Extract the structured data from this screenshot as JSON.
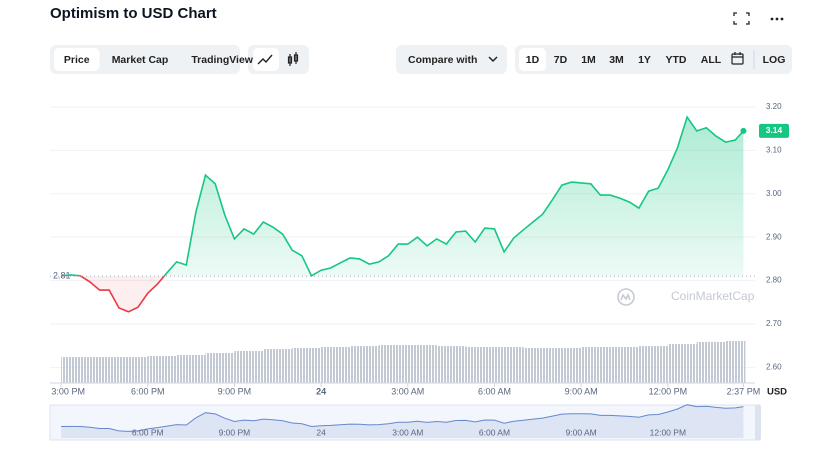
{
  "header": {
    "title": "Optimism to USD Chart"
  },
  "toolbar": {
    "tabs": [
      "Price",
      "Market Cap",
      "TradingView"
    ],
    "active_tab": "Price",
    "compare": "Compare with",
    "ranges": [
      "1D",
      "7D",
      "1M",
      "3M",
      "1Y",
      "YTD",
      "ALL"
    ],
    "active_range": "1D",
    "log": "LOG"
  },
  "chart_data": {
    "type": "line",
    "watermark": "CoinMarketCap",
    "y_unit": "USD",
    "x": [
      0,
      20,
      40,
      60,
      80,
      100,
      120,
      140,
      160,
      180,
      200,
      220,
      240,
      260,
      280,
      300,
      320,
      340,
      360,
      380,
      400,
      420,
      440,
      460,
      480,
      500,
      520,
      540,
      560,
      580,
      600,
      620,
      640,
      660,
      680,
      700,
      720,
      740,
      760,
      780,
      800,
      820,
      840,
      860,
      880,
      900,
      920,
      940,
      960,
      980,
      1000,
      1020,
      1040,
      1060,
      1080,
      1100,
      1120,
      1140,
      1160,
      1180,
      1200,
      1220,
      1240,
      1260,
      1280,
      1300,
      1320,
      1340,
      1360,
      1380,
      1400,
      1417
    ],
    "values": [
      2.811,
      2.813,
      2.811,
      2.797,
      2.778,
      2.778,
      2.737,
      2.728,
      2.739,
      2.771,
      2.792,
      2.818,
      2.843,
      2.836,
      2.958,
      3.043,
      3.023,
      2.951,
      2.896,
      2.919,
      2.907,
      2.935,
      2.923,
      2.907,
      2.87,
      2.857,
      2.811,
      2.824,
      2.829,
      2.841,
      2.852,
      2.85,
      2.838,
      2.843,
      2.857,
      2.884,
      2.884,
      2.9,
      2.88,
      2.896,
      2.884,
      2.912,
      2.914,
      2.889,
      2.921,
      2.919,
      2.866,
      2.898,
      2.917,
      2.935,
      2.953,
      2.986,
      3.02,
      3.027,
      3.025,
      3.023,
      2.997,
      2.997,
      2.99,
      2.981,
      2.967,
      3.006,
      3.013,
      3.055,
      3.106,
      3.177,
      3.145,
      3.152,
      3.133,
      3.119,
      3.124,
      3.145
    ],
    "baseline": 2.81,
    "last_price_label": "3.14",
    "colors": {
      "up": "#16c784",
      "down": "#ea3943",
      "volume": "#c3c9d3",
      "navigator": "#6688cc"
    },
    "volume": {
      "x": [
        0,
        60,
        120,
        180,
        240,
        300,
        360,
        420,
        480,
        540,
        600,
        660,
        720,
        780,
        840,
        900,
        960,
        1020,
        1080,
        1140,
        1200,
        1260,
        1320,
        1380
      ],
      "values": [
        26,
        26,
        26,
        27,
        28,
        30,
        32,
        34,
        35,
        36,
        37,
        38,
        38,
        37,
        36,
        36,
        35,
        35,
        36,
        36,
        37,
        39,
        41,
        42
      ]
    },
    "xlim": [
      -23,
      1441
    ],
    "ylim": [
      2.564,
      3.223
    ],
    "xticks": [
      {
        "value": 0,
        "label": "3:00 PM"
      },
      {
        "value": 180,
        "label": "6:00 PM"
      },
      {
        "value": 360,
        "label": "9:00 PM"
      },
      {
        "value": 540,
        "label": "24"
      },
      {
        "value": 720,
        "label": "3:00 AM"
      },
      {
        "value": 900,
        "label": "6:00 AM"
      },
      {
        "value": 1080,
        "label": "9:00 AM"
      },
      {
        "value": 1260,
        "label": "12:00 PM"
      },
      {
        "value": 1417,
        "label": "2:37 PM"
      }
    ],
    "yticks": [
      {
        "value": 2.6,
        "label": "2.60"
      },
      {
        "value": 2.7,
        "label": "2.70"
      },
      {
        "value": 2.8,
        "label": "2.80"
      },
      {
        "value": 2.9,
        "label": "2.90"
      },
      {
        "value": 3.0,
        "label": "3.00"
      },
      {
        "value": 3.1,
        "label": "3.10"
      },
      {
        "value": 3.2,
        "label": "3.20"
      }
    ],
    "grid": true
  }
}
